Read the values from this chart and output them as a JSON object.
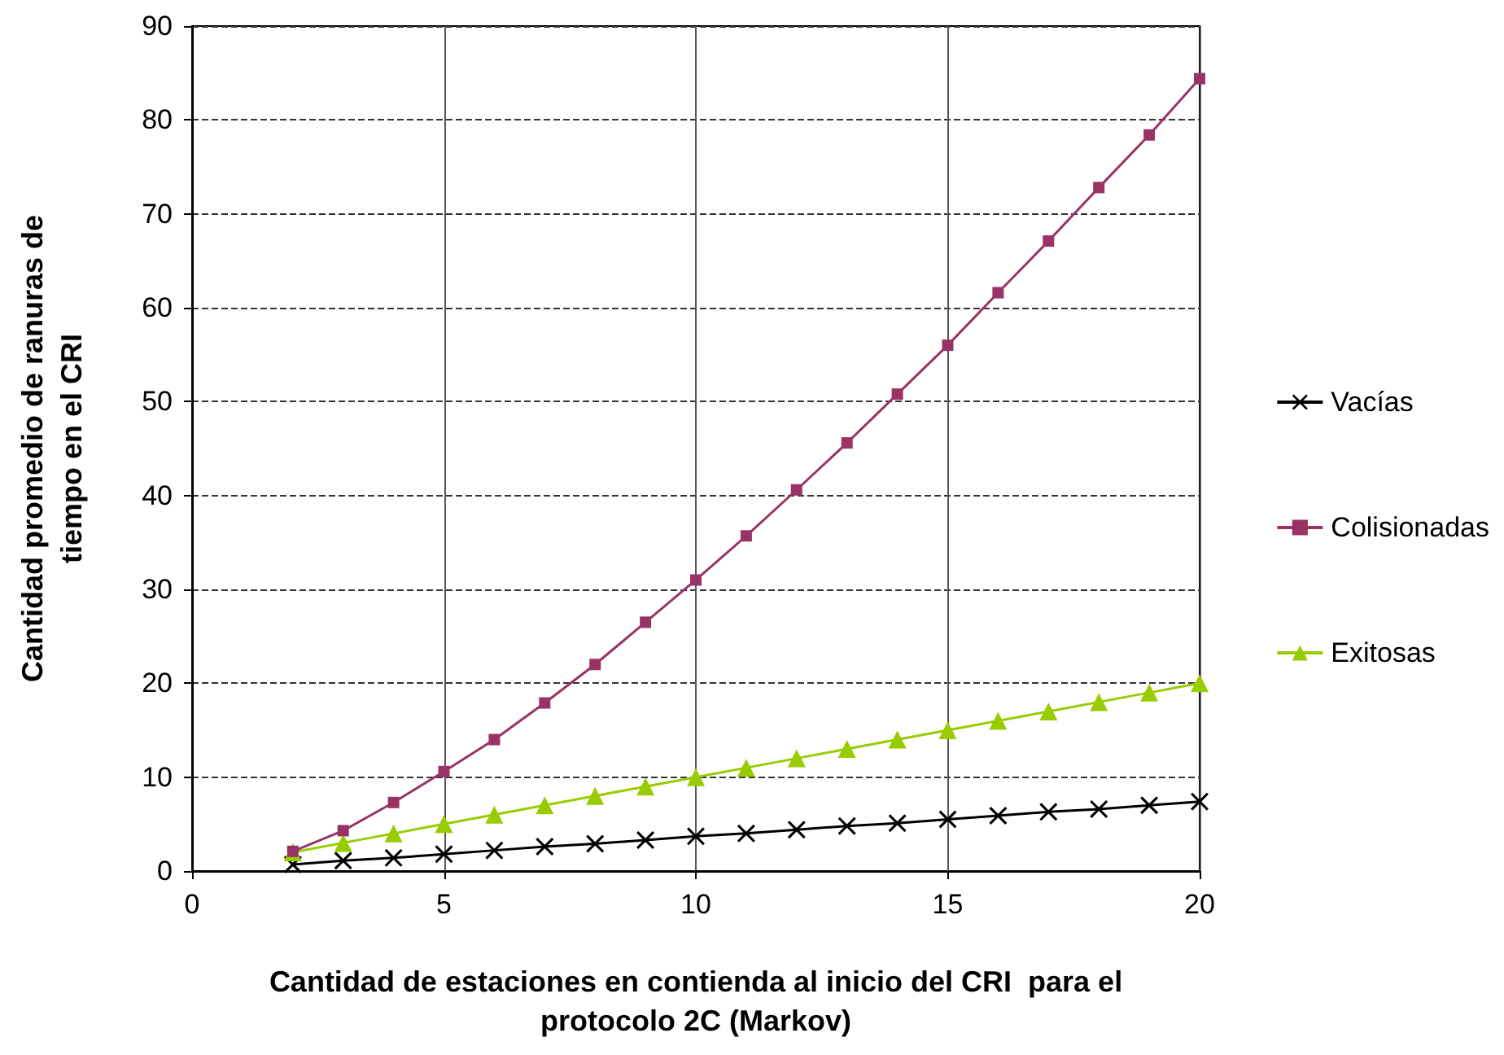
{
  "chart_data": {
    "type": "line",
    "xlabel": "Cantidad de estaciones en contienda al inicio del CRI  para el protocolo 2C (Markov)",
    "ylabel": "Cantidad promedio de ranuras de tiempo en el CRI",
    "x": [
      2,
      3,
      4,
      5,
      6,
      7,
      8,
      9,
      10,
      11,
      12,
      13,
      14,
      15,
      16,
      17,
      18,
      19,
      20
    ],
    "series": [
      {
        "name": "Vacías",
        "color": "#000000",
        "marker": "cross",
        "values": [
          0.7,
          1.1,
          1.4,
          1.8,
          2.2,
          2.6,
          2.9,
          3.3,
          3.7,
          4.0,
          4.4,
          4.8,
          5.1,
          5.5,
          5.9,
          6.3,
          6.6,
          7.0,
          7.4
        ]
      },
      {
        "name": "Colisionadas",
        "color": "#993366",
        "marker": "square",
        "values": [
          2.1,
          4.3,
          7.3,
          10.6,
          14.0,
          17.9,
          22.0,
          26.5,
          31.0,
          35.7,
          40.6,
          45.6,
          50.8,
          56.0,
          61.6,
          67.1,
          72.8,
          78.4,
          84.4
        ]
      },
      {
        "name": "Exitosas",
        "color": "#99cc00",
        "marker": "triangle",
        "values": [
          2,
          3,
          4,
          5,
          6,
          7,
          8,
          9,
          10,
          11,
          12,
          13,
          14,
          15,
          16,
          17,
          18,
          19,
          20
        ]
      }
    ],
    "xlim": [
      0,
      20
    ],
    "xticks": [
      0,
      5,
      10,
      15,
      20
    ],
    "ylim": [
      0,
      90
    ],
    "yticks": [
      0,
      10,
      20,
      30,
      40,
      50,
      60,
      70,
      80,
      90
    ],
    "grid": true,
    "legend": "right",
    "line_style": "solid"
  }
}
